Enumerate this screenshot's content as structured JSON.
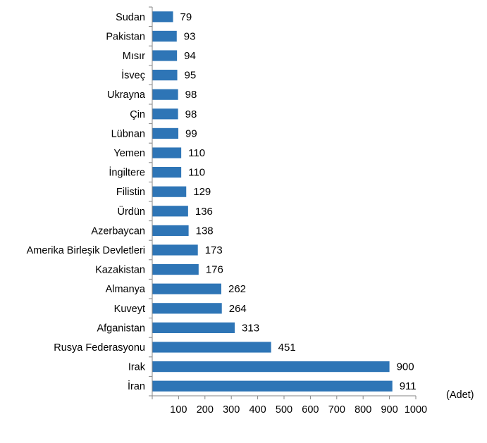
{
  "chart_data": {
    "type": "bar",
    "orientation": "horizontal",
    "categories": [
      "Sudan",
      "Pakistan",
      "Mısır",
      "İsveç",
      "Ukrayna",
      "Çin",
      "Lübnan",
      "Yemen",
      "İngiltere",
      "Filistin",
      "Ürdün",
      "Azerbaycan",
      "Amerika Birleşik Devletleri",
      "Kazakistan",
      "Almanya",
      "Kuveyt",
      "Afganistan",
      "Rusya Federasyonu",
      "Irak",
      "İran"
    ],
    "values": [
      79,
      93,
      94,
      95,
      98,
      98,
      99,
      110,
      110,
      129,
      136,
      138,
      173,
      176,
      262,
      264,
      313,
      451,
      900,
      911
    ],
    "value_labels": [
      "79",
      "93",
      "94",
      "95",
      "98",
      "98",
      "99",
      "110",
      "110",
      "129",
      "136",
      "138",
      "173",
      "176",
      "262",
      "264",
      "313",
      "451",
      "900",
      "911"
    ],
    "xlim": [
      0,
      1000
    ],
    "x_ticks": [
      100,
      200,
      300,
      400,
      500,
      600,
      700,
      800,
      900,
      1000
    ],
    "x_tick_labels": [
      "100",
      "200",
      "300",
      "400",
      "500",
      "600",
      "700",
      "800",
      "900",
      "1000"
    ],
    "unit_label": "(Adet)",
    "bar_color": "#2E75B6",
    "grid": false,
    "legend": "none"
  }
}
